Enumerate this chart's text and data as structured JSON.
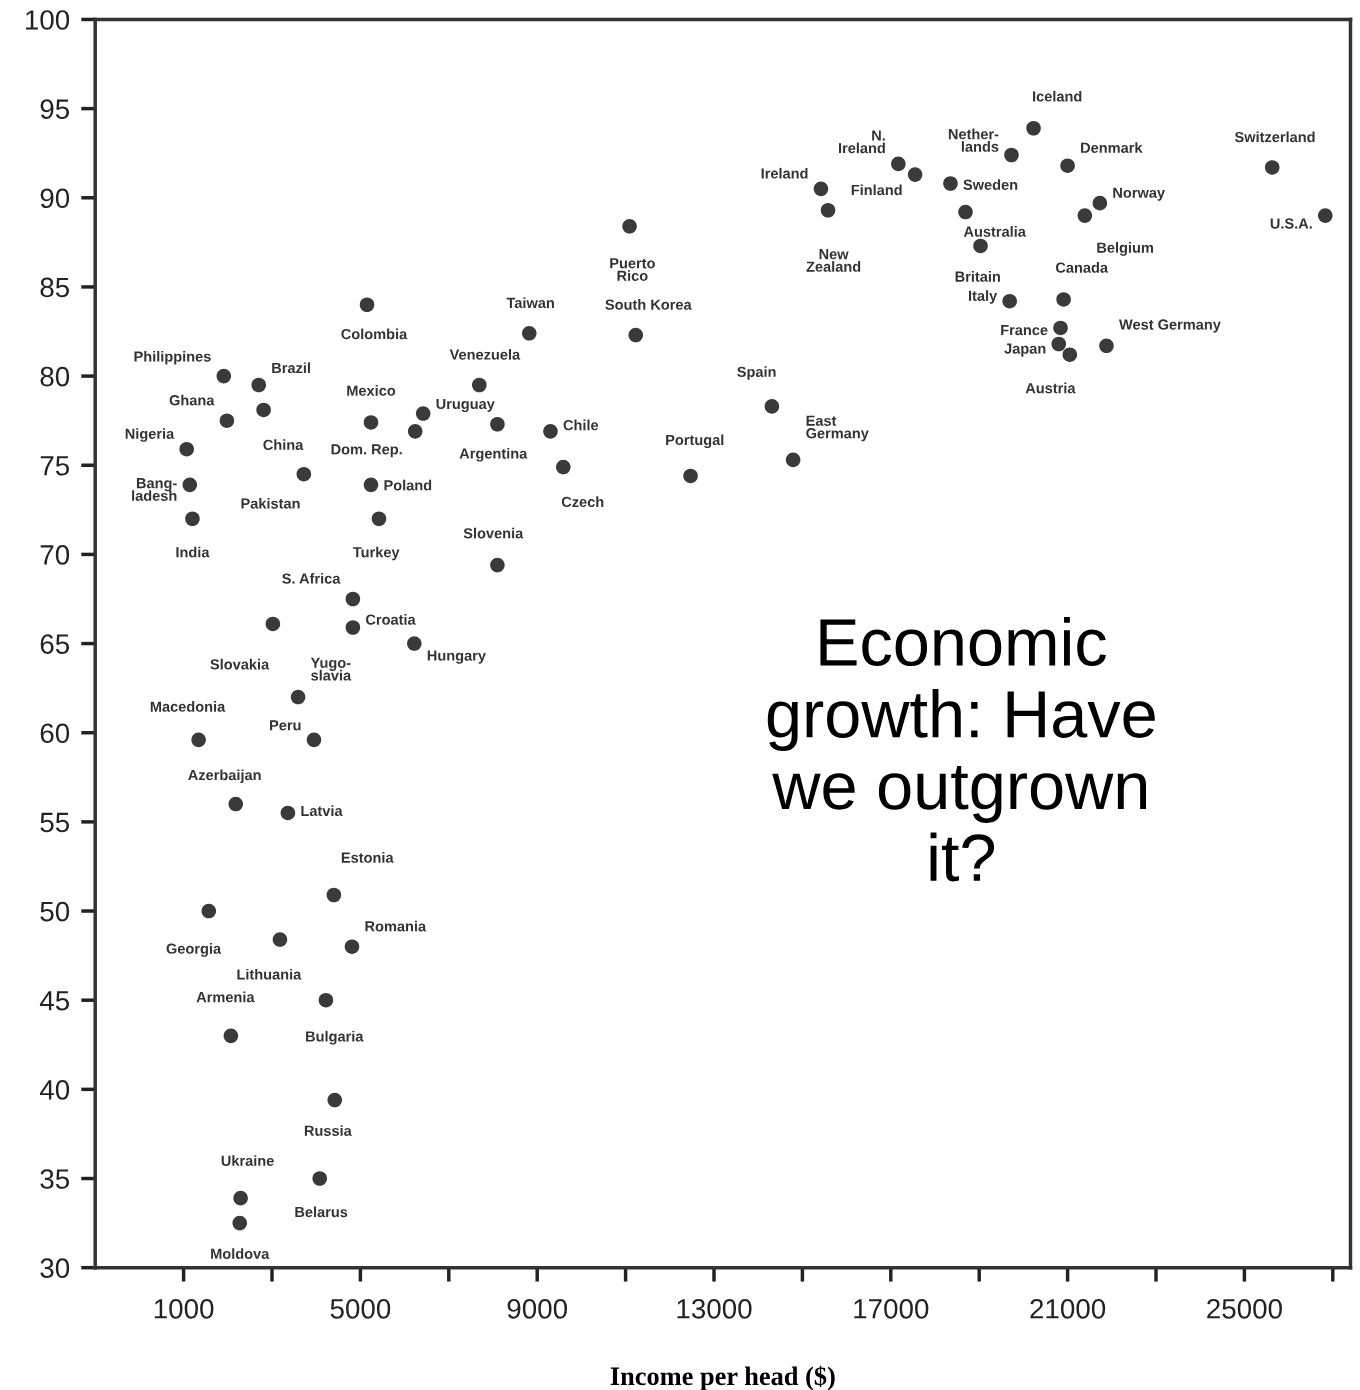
{
  "chart_data": {
    "type": "scatter",
    "title": "Economic\ngrowth: Have\nwe outgrown\nit?",
    "xlabel": "Income per head ($)",
    "x": [
      20230,
      17170,
      19730,
      21000,
      25630,
      15420,
      17550,
      18350,
      15580,
      18690,
      21730,
      21390,
      26830,
      11090,
      19030,
      19690,
      20910,
      5150,
      8820,
      11230,
      20840,
      21880,
      20800,
      21050,
      1910,
      2700,
      7690,
      1980,
      2810,
      5240,
      6420,
      8100,
      6240,
      9300,
      1070,
      9590,
      14790,
      14310,
      12470,
      3720,
      1140,
      5240,
      1200,
      5420,
      8100,
      4830,
      4830,
      3020,
      3590,
      6220,
      1340,
      3950,
      2180,
      3360,
      4400,
      1570,
      3180,
      4810,
      2070,
      4220,
      4420,
      2290,
      4080,
      2270
    ],
    "values": [
      93.9,
      91.9,
      92.4,
      91.8,
      91.7,
      90.5,
      91.3,
      90.8,
      89.3,
      89.2,
      89.7,
      89.0,
      89.0,
      88.4,
      87.3,
      84.2,
      84.3,
      84.0,
      82.4,
      82.3,
      82.7,
      81.7,
      81.8,
      81.2,
      80.0,
      79.5,
      79.5,
      77.5,
      78.1,
      77.4,
      77.9,
      77.3,
      76.9,
      76.9,
      75.9,
      74.9,
      75.3,
      78.3,
      74.4,
      74.5,
      73.9,
      73.9,
      72.0,
      72.0,
      69.4,
      67.5,
      65.9,
      66.1,
      62.0,
      65.0,
      59.6,
      59.6,
      56.0,
      55.5,
      50.9,
      50.0,
      48.4,
      48.0,
      43.0,
      45.0,
      39.4,
      33.9,
      35.0,
      32.5
    ],
    "color": "#3a3a3a",
    "marker": "circle",
    "grid": false,
    "xlim": [
      -1000,
      27400
    ],
    "ylim": [
      30,
      100
    ],
    "xticks": [
      1000,
      {
        "value": 3000,
        "label": null
      },
      5000,
      {
        "value": 7000,
        "label": null
      },
      9000,
      {
        "value": 11000,
        "label": null
      },
      13000,
      {
        "value": 15000,
        "label": null
      },
      17000,
      {
        "value": 19000,
        "label": null
      },
      21000,
      {
        "value": 23000,
        "label": null
      },
      25000,
      {
        "value": 27000,
        "label": null
      }
    ],
    "yticks": [
      30,
      35,
      40,
      45,
      50,
      55,
      60,
      65,
      70,
      75,
      80,
      85,
      90,
      95,
      100
    ],
    "annotations": [
      {
        "text": "Iceland",
        "x": 20230,
        "y": 93.9
      },
      {
        "text": "N.\nIreland",
        "x": 17170,
        "y": 91.9
      },
      {
        "text": "Nether-\nlands",
        "x": 19730,
        "y": 92.4
      },
      {
        "text": "Denmark",
        "x": 21000,
        "y": 91.8
      },
      {
        "text": "Switzerland",
        "x": 25630,
        "y": 91.7
      },
      {
        "text": "Ireland",
        "x": 15420,
        "y": 90.5
      },
      {
        "text": "Finland",
        "x": 17550,
        "y": 91.3
      },
      {
        "text": "Sweden",
        "x": 18350,
        "y": 90.8
      },
      {
        "text": "New\nZealand",
        "x": 15580,
        "y": 89.3
      },
      {
        "text": "Australia",
        "x": 18690,
        "y": 89.2
      },
      {
        "text": "Norway",
        "x": 21730,
        "y": 89.7
      },
      {
        "text": "Belgium",
        "x": 21390,
        "y": 89.0
      },
      {
        "text": "U.S.A.",
        "x": 26830,
        "y": 89.0
      },
      {
        "text": "Puerto\nRico",
        "x": 11090,
        "y": 88.4
      },
      {
        "text": "Britain",
        "x": 19030,
        "y": 87.3
      },
      {
        "text": "Italy",
        "x": 19690,
        "y": 84.2
      },
      {
        "text": "Canada",
        "x": 20910,
        "y": 84.3
      },
      {
        "text": "Colombia",
        "x": 5150,
        "y": 84.0
      },
      {
        "text": "Taiwan",
        "x": 8820,
        "y": 82.4
      },
      {
        "text": "South Korea",
        "x": 11230,
        "y": 82.3
      },
      {
        "text": "France",
        "x": 20840,
        "y": 82.7
      },
      {
        "text": "West Germany",
        "x": 21880,
        "y": 81.7
      },
      {
        "text": "Japan",
        "x": 20800,
        "y": 81.8
      },
      {
        "text": "Austria",
        "x": 21050,
        "y": 81.2
      },
      {
        "text": "Philippines",
        "x": 1910,
        "y": 80.0
      },
      {
        "text": "Brazil",
        "x": 2700,
        "y": 79.5
      },
      {
        "text": "Venezuela",
        "x": 7690,
        "y": 79.5
      },
      {
        "text": "Ghana",
        "x": 1980,
        "y": 77.5
      },
      {
        "text": "China",
        "x": 2810,
        "y": 78.1
      },
      {
        "text": "Mexico",
        "x": 5240,
        "y": 77.4
      },
      {
        "text": "Uruguay",
        "x": 6420,
        "y": 77.9
      },
      {
        "text": "Argentina",
        "x": 8100,
        "y": 77.3
      },
      {
        "text": "Dom. Rep.",
        "x": 6240,
        "y": 76.9
      },
      {
        "text": "Chile",
        "x": 9300,
        "y": 76.9
      },
      {
        "text": "Nigeria",
        "x": 1070,
        "y": 75.9
      },
      {
        "text": "Czech",
        "x": 9590,
        "y": 74.9
      },
      {
        "text": "East\nGermany",
        "x": 14790,
        "y": 75.3
      },
      {
        "text": "Spain",
        "x": 14310,
        "y": 78.3
      },
      {
        "text": "Portugal",
        "x": 12470,
        "y": 74.4
      },
      {
        "text": "Pakistan",
        "x": 3720,
        "y": 74.5
      },
      {
        "text": "Bang-\nladesh",
        "x": 1140,
        "y": 73.9
      },
      {
        "text": "Poland",
        "x": 5240,
        "y": 73.9
      },
      {
        "text": "India",
        "x": 1200,
        "y": 72.0
      },
      {
        "text": "Turkey",
        "x": 5420,
        "y": 72.0
      },
      {
        "text": "Slovenia",
        "x": 8100,
        "y": 69.4
      },
      {
        "text": "S. Africa",
        "x": 4830,
        "y": 67.5
      },
      {
        "text": "Croatia",
        "x": 4830,
        "y": 65.9
      },
      {
        "text": "Slovakia",
        "x": 3020,
        "y": 66.1
      },
      {
        "text": "Yugo-\nslavia",
        "x": 3590,
        "y": 62.0
      },
      {
        "text": "Hungary",
        "x": 6220,
        "y": 65.0
      },
      {
        "text": "Macedonia",
        "x": 1340,
        "y": 59.6
      },
      {
        "text": "Peru",
        "x": 3950,
        "y": 59.6
      },
      {
        "text": "Azerbaijan",
        "x": 2180,
        "y": 56.0
      },
      {
        "text": "Latvia",
        "x": 3360,
        "y": 55.5
      },
      {
        "text": "Estonia",
        "x": 4400,
        "y": 50.9
      },
      {
        "text": "Georgia",
        "x": 1570,
        "y": 50.0
      },
      {
        "text": "Lithuania",
        "x": 3180,
        "y": 48.4
      },
      {
        "text": "Romania",
        "x": 4810,
        "y": 48.0
      },
      {
        "text": "Armenia",
        "x": 2070,
        "y": 43.0
      },
      {
        "text": "Bulgaria",
        "x": 4220,
        "y": 45.0
      },
      {
        "text": "Russia",
        "x": 4420,
        "y": 39.4
      },
      {
        "text": "Ukraine",
        "x": 2290,
        "y": 33.9
      },
      {
        "text": "Belarus",
        "x": 4080,
        "y": 35.0
      },
      {
        "text": "Moldova",
        "x": 2270,
        "y": 32.5
      }
    ]
  }
}
